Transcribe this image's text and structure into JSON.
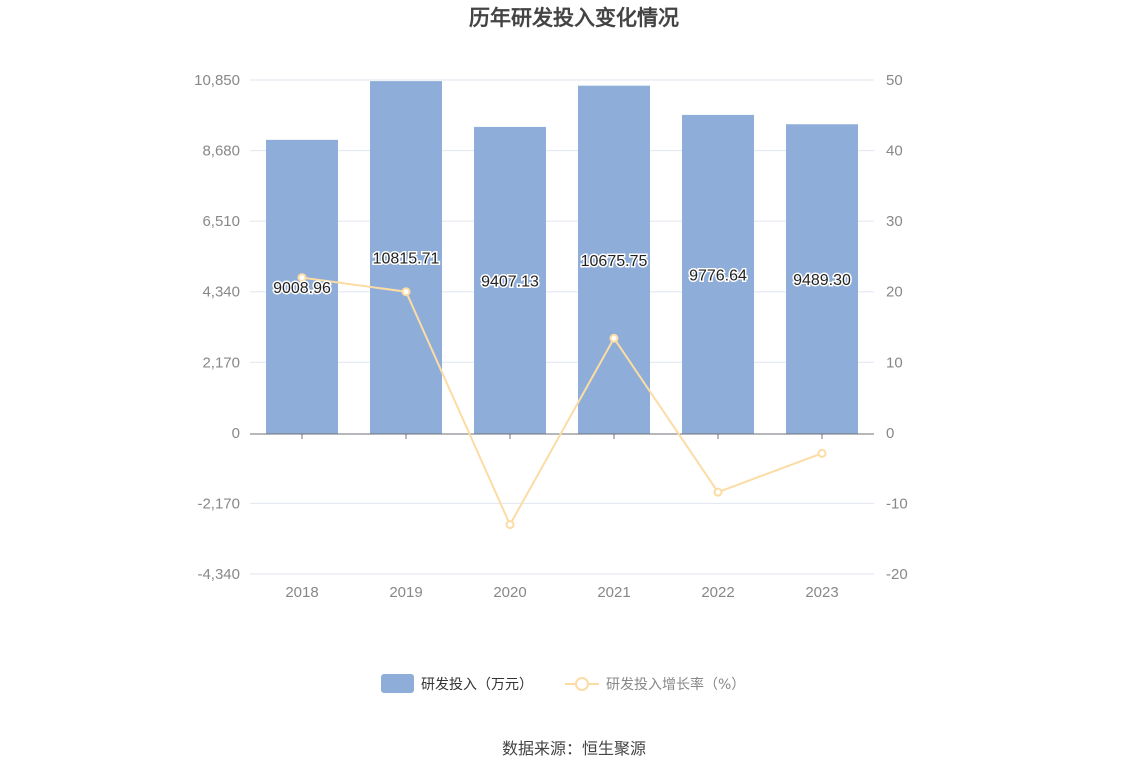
{
  "chart_data": {
    "type": "bar",
    "title": "历年研发投入变化情况",
    "categories": [
      "2018",
      "2019",
      "2020",
      "2021",
      "2022",
      "2023"
    ],
    "series": [
      {
        "name": "研发投入（万元）",
        "type": "bar",
        "axis": "left",
        "color": "#8eadd9",
        "values": [
          9008.96,
          10815.71,
          9407.13,
          10675.75,
          9776.64,
          9489.3
        ],
        "labels": [
          "9008.96",
          "10815.71",
          "9407.13",
          "10675.75",
          "9776.64",
          "9489.30"
        ]
      },
      {
        "name": "研发投入增长率（%）",
        "type": "line",
        "axis": "right",
        "color": "#fbdca4",
        "values": [
          22.0,
          20.0,
          -13.0,
          13.4,
          -8.4,
          -2.9
        ]
      }
    ],
    "y_left": {
      "ylim": [
        -4340,
        10850
      ],
      "ticks": [
        10850,
        8680,
        6510,
        4340,
        2170,
        0,
        -2170,
        -4340
      ],
      "tick_labels": [
        "10,850",
        "8,680",
        "6,510",
        "4,340",
        "2,170",
        "0",
        "-2,170",
        "-4,340"
      ]
    },
    "y_right": {
      "ylim": [
        -20,
        50
      ],
      "ticks": [
        50,
        40,
        30,
        20,
        10,
        0,
        -10,
        -20
      ],
      "tick_labels": [
        "50",
        "40",
        "30",
        "20",
        "10",
        "0",
        "-10",
        "-20"
      ]
    },
    "grid": true,
    "legend_position": "bottom"
  },
  "source_text": "数据来源：恒生聚源",
  "colors": {
    "bar": "#8eadd9",
    "line": "#fbdca4",
    "grid": "#e0e6f1",
    "axis": "#6e7079"
  }
}
